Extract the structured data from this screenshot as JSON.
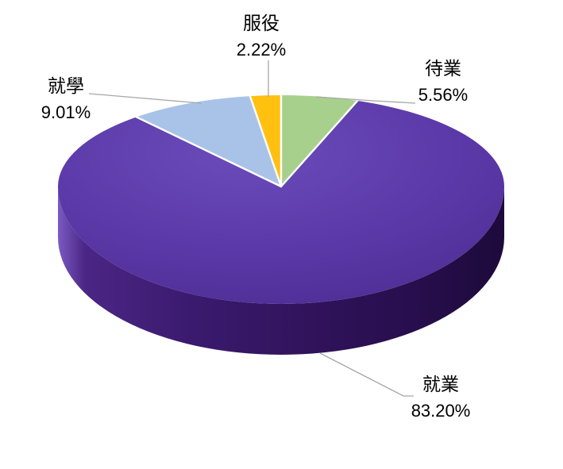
{
  "page": {
    "background_color": "#FFFFFF",
    "title": ""
  },
  "chart_data": {
    "type": "pie",
    "effect": "3d-perspective",
    "title": "",
    "legend": "none",
    "direction": "clockwise",
    "start_angle_deg": 0,
    "label_style": "category name above percentage, outside with leader lines",
    "label_text_color": "#000000",
    "leader_line_color": "#A6A6A6",
    "separator_color": "#FFFFFF",
    "segments": [
      {
        "label": "待業",
        "value": 5.56,
        "display": "5.56%",
        "color": "#A8D08D",
        "use_gradient": false
      },
      {
        "label": "就業",
        "value": 83.2,
        "display": "83.20%",
        "color": "#5B38A6",
        "use_gradient": true
      },
      {
        "label": "就學",
        "value": 9.01,
        "display": "9.01%",
        "color": "#A9C3E8",
        "use_gradient": false
      },
      {
        "label": "服役",
        "value": 2.22,
        "display": "2.22%",
        "color": "#FFC010",
        "use_gradient": false
      }
    ]
  }
}
